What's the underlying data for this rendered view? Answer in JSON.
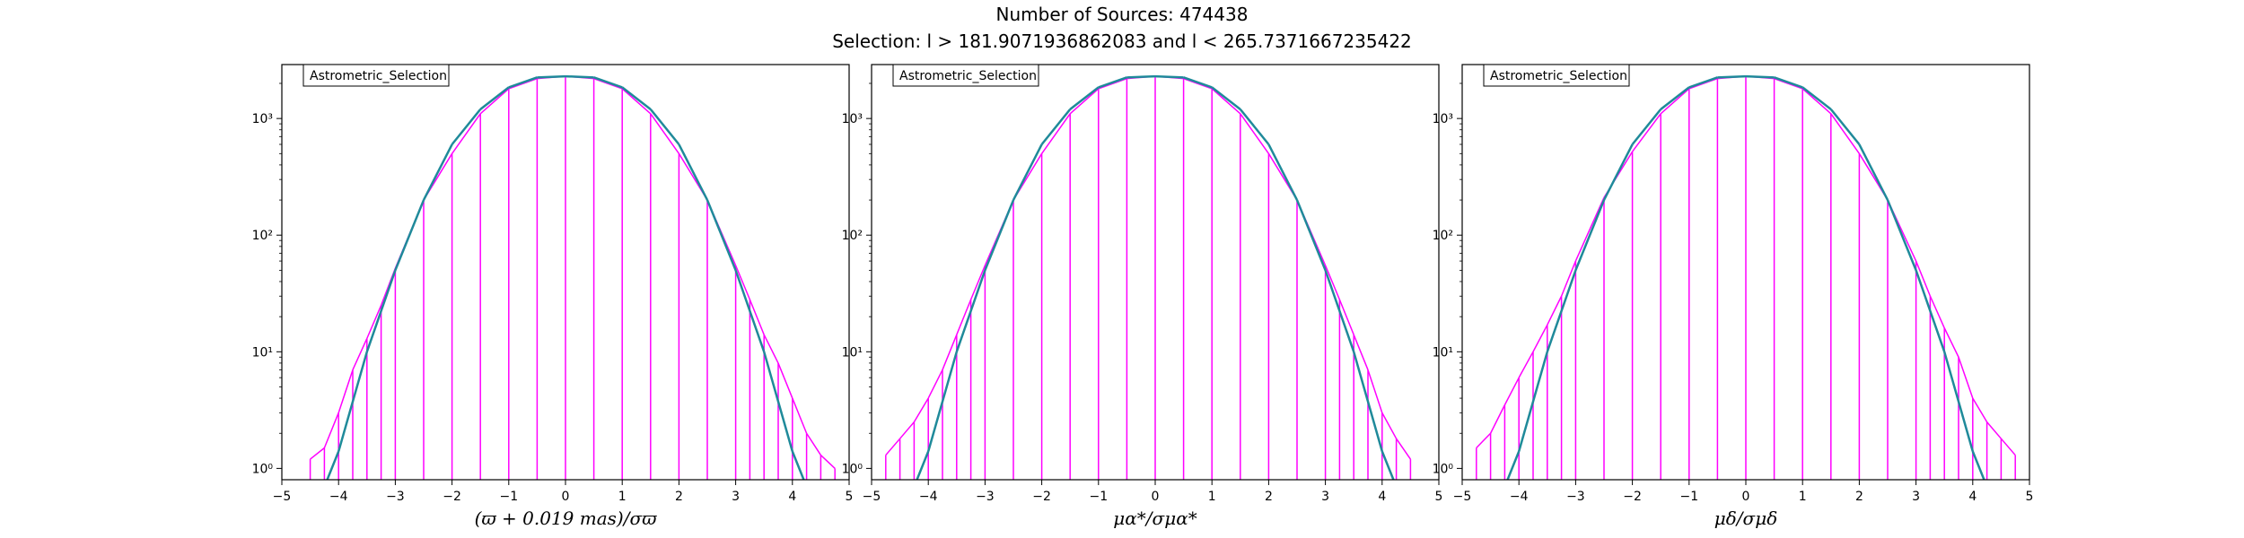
{
  "figure": {
    "title": "Number of Sources: 474438",
    "subtitle": "Selection: l > 181.9071936862083 and l < 265.7371667235422"
  },
  "colors": {
    "histogram": "#ff00ff",
    "fit": "#1f8a9a",
    "frame": "#000000"
  },
  "chart_data": [
    {
      "type": "line",
      "title": "",
      "legend": "Astrometric_Selection",
      "legend_position": "top-left",
      "xlabel": "(ϖ + 0.019 mas)/σϖ",
      "xlim": [
        -5,
        5
      ],
      "x_ticks": [
        -5,
        -4,
        -3,
        -2,
        -1,
        0,
        1,
        2,
        3,
        4,
        5
      ],
      "yscale": "log",
      "ylim": [
        0.8,
        2900
      ],
      "y_ticks": [
        1,
        10,
        100,
        1000
      ],
      "y_tick_labels": [
        "10⁰",
        "10¹",
        "10²",
        "10³"
      ],
      "series": [
        {
          "style": "histogram",
          "x": [
            -4.5,
            -4.25,
            -4.0,
            -3.75,
            -3.5,
            -3.25,
            -3.0,
            -2.5,
            -2.0,
            -1.5,
            -1.0,
            -0.5,
            0,
            0.5,
            1.0,
            1.5,
            2.0,
            2.5,
            3.0,
            3.25,
            3.5,
            3.75,
            4.0,
            4.25,
            4.5,
            4.75
          ],
          "y": [
            1.2,
            1.5,
            3,
            7,
            13,
            25,
            52,
            200,
            500,
            1100,
            1800,
            2200,
            2300,
            2200,
            1800,
            1100,
            500,
            200,
            55,
            28,
            14,
            8,
            4,
            2,
            1.3,
            1
          ]
        },
        {
          "style": "fit-curve",
          "x": [
            -4.2,
            -4.0,
            -3.5,
            -3.0,
            -2.5,
            -2.0,
            -1.5,
            -1.0,
            -0.5,
            0,
            0.5,
            1.0,
            1.5,
            2.0,
            2.5,
            3.0,
            3.5,
            4.0,
            4.2
          ],
          "y": [
            0.8,
            1.4,
            10,
            50,
            200,
            600,
            1200,
            1850,
            2250,
            2300,
            2250,
            1850,
            1200,
            600,
            200,
            50,
            10,
            1.4,
            0.8
          ]
        }
      ]
    },
    {
      "type": "line",
      "title": "",
      "legend": "Astrometric_Selection",
      "legend_position": "top-left",
      "xlabel": "μα*/σμα*",
      "xlim": [
        -5,
        5
      ],
      "x_ticks": [
        -5,
        -4,
        -3,
        -2,
        -1,
        0,
        1,
        2,
        3,
        4,
        5
      ],
      "yscale": "log",
      "ylim": [
        0.8,
        2900
      ],
      "y_ticks": [
        1,
        10,
        100,
        1000
      ],
      "y_tick_labels": [
        "10⁰",
        "10¹",
        "10²",
        "10³"
      ],
      "series": [
        {
          "style": "histogram",
          "x": [
            -4.75,
            -4.5,
            -4.25,
            -4.0,
            -3.75,
            -3.5,
            -3.25,
            -3.0,
            -2.5,
            -2.0,
            -1.5,
            -1.0,
            -0.5,
            0,
            0.5,
            1.0,
            1.5,
            2.0,
            2.5,
            3.0,
            3.25,
            3.5,
            3.75,
            4.0,
            4.25,
            4.5
          ],
          "y": [
            1.3,
            1.8,
            2.5,
            4,
            7,
            14,
            28,
            55,
            200,
            500,
            1100,
            1800,
            2200,
            2300,
            2200,
            1800,
            1100,
            500,
            200,
            55,
            28,
            14,
            7,
            3,
            1.8,
            1.2
          ]
        },
        {
          "style": "fit-curve",
          "x": [
            -4.2,
            -4.0,
            -3.5,
            -3.0,
            -2.5,
            -2.0,
            -1.5,
            -1.0,
            -0.5,
            0,
            0.5,
            1.0,
            1.5,
            2.0,
            2.5,
            3.0,
            3.5,
            4.0,
            4.2
          ],
          "y": [
            0.8,
            1.4,
            10,
            50,
            200,
            600,
            1200,
            1850,
            2250,
            2300,
            2250,
            1850,
            1200,
            600,
            200,
            50,
            10,
            1.4,
            0.8
          ]
        }
      ]
    },
    {
      "type": "line",
      "title": "",
      "legend": "Astrometric_Selection",
      "legend_position": "top-left",
      "xlabel": "μδ/σμδ",
      "xlim": [
        -5,
        5
      ],
      "x_ticks": [
        -5,
        -4,
        -3,
        -2,
        -1,
        0,
        1,
        2,
        3,
        4,
        5
      ],
      "yscale": "log",
      "ylim": [
        0.8,
        2900
      ],
      "y_ticks": [
        1,
        10,
        100,
        1000
      ],
      "y_tick_labels": [
        "10⁰",
        "10¹",
        "10²",
        "10³"
      ],
      "series": [
        {
          "style": "histogram",
          "x": [
            -4.75,
            -4.5,
            -4.25,
            -4.0,
            -3.75,
            -3.5,
            -3.25,
            -3.0,
            -2.5,
            -2.0,
            -1.5,
            -1.0,
            -0.5,
            0,
            0.5,
            1.0,
            1.5,
            2.0,
            2.5,
            3.0,
            3.25,
            3.5,
            3.75,
            4.0,
            4.25,
            4.5,
            4.75
          ],
          "y": [
            1.5,
            2,
            3.5,
            6,
            10,
            17,
            30,
            60,
            210,
            520,
            1100,
            1800,
            2200,
            2300,
            2200,
            1800,
            1100,
            500,
            200,
            60,
            30,
            16,
            9,
            4,
            2.5,
            1.8,
            1.3
          ]
        },
        {
          "style": "fit-curve",
          "x": [
            -4.2,
            -4.0,
            -3.5,
            -3.0,
            -2.5,
            -2.0,
            -1.5,
            -1.0,
            -0.5,
            0,
            0.5,
            1.0,
            1.5,
            2.0,
            2.5,
            3.0,
            3.5,
            4.0,
            4.2
          ],
          "y": [
            0.8,
            1.4,
            10,
            50,
            200,
            600,
            1200,
            1850,
            2250,
            2300,
            2250,
            1850,
            1200,
            600,
            200,
            50,
            10,
            1.4,
            0.8
          ]
        }
      ]
    }
  ]
}
